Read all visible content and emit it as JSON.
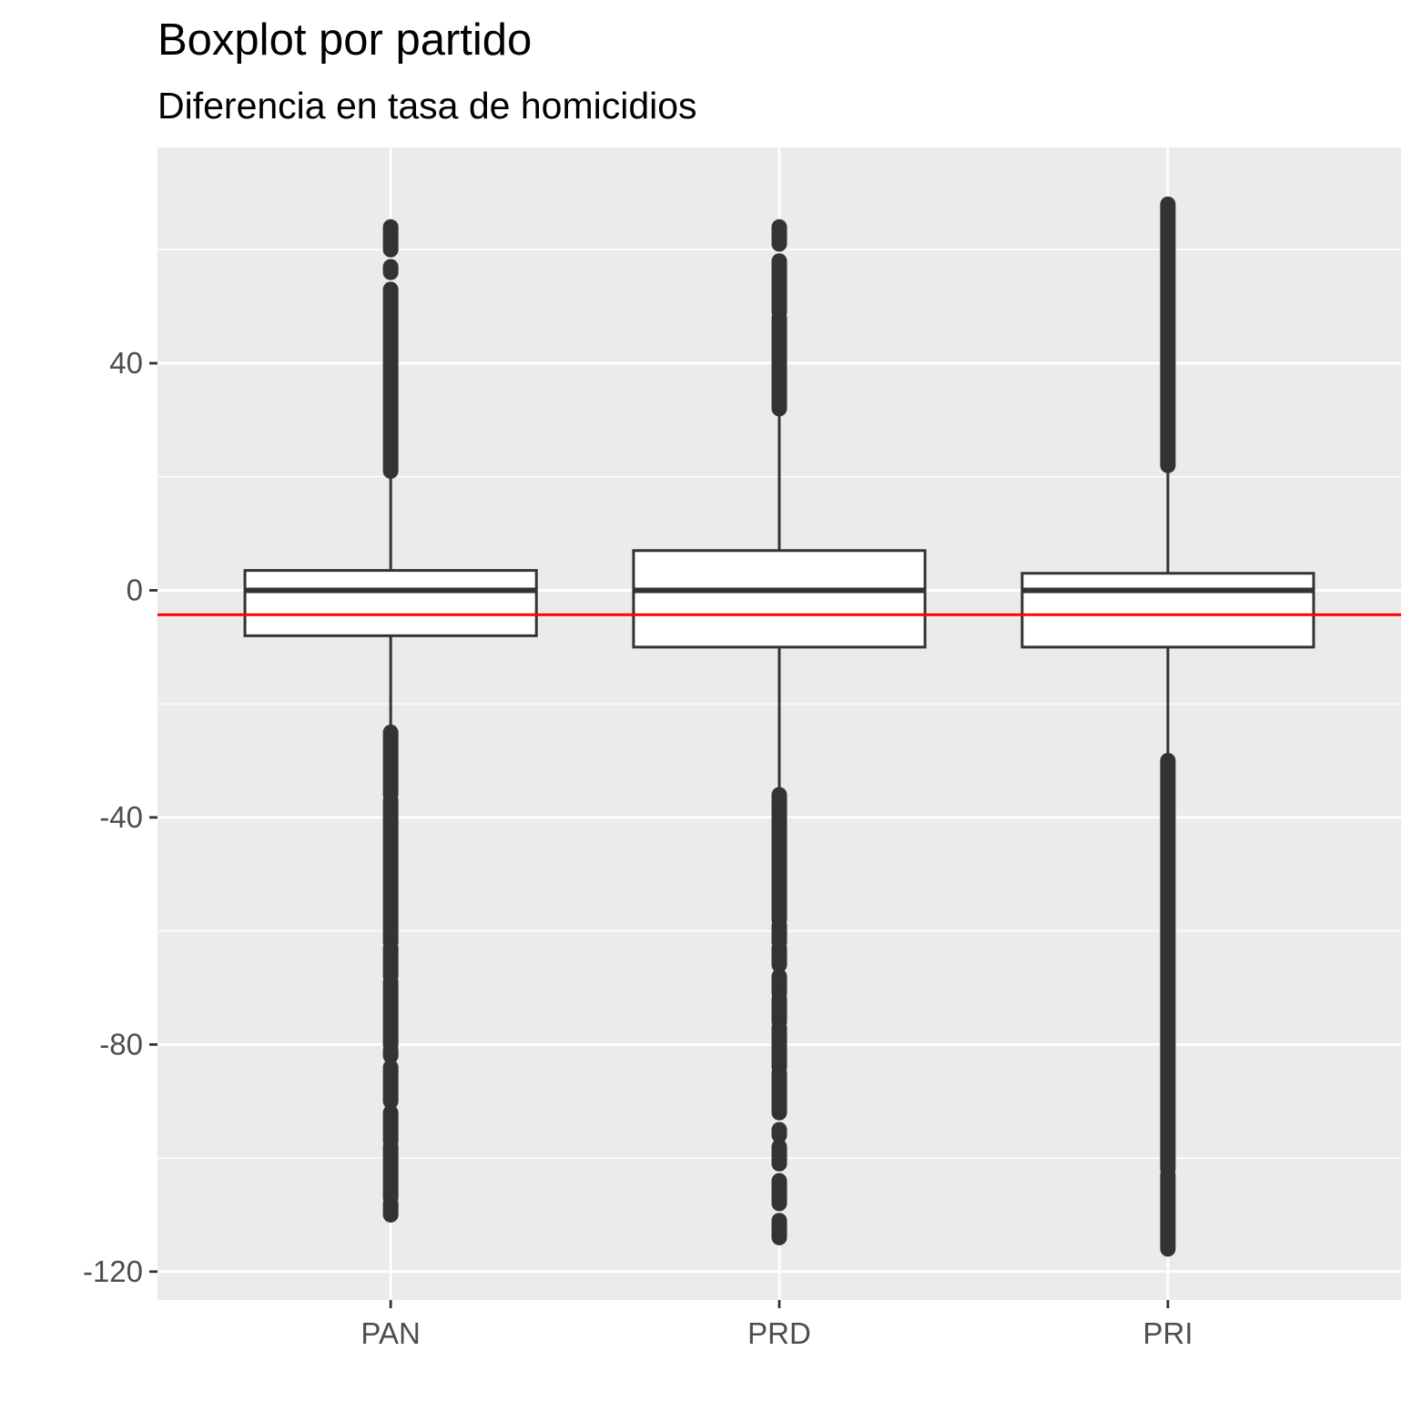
{
  "chart_data": {
    "type": "boxplot",
    "title": "Boxplot por partido",
    "subtitle": "Diferencia en tasa de homicidios",
    "xlabel": "",
    "ylabel": "",
    "categories": [
      "PAN",
      "PRD",
      "PRI"
    ],
    "ylim": [
      -125,
      78
    ],
    "y_ticks": [
      40,
      0,
      -40,
      -80,
      -120
    ],
    "y_tick_labels": [
      "40",
      "0",
      "-40",
      "-80",
      "-120"
    ],
    "boxes": [
      {
        "category": "PAN",
        "q1": -8,
        "median": 0,
        "q3": 3.5,
        "whisker_low": -25,
        "whisker_high": 21,
        "outlier_segments": [
          [
            21,
            53
          ],
          [
            56,
            57
          ],
          [
            60,
            64
          ],
          [
            -25,
            -36
          ],
          [
            -37,
            -62
          ],
          [
            -63,
            -68
          ],
          [
            -69,
            -80
          ],
          [
            -81,
            -82
          ],
          [
            -84,
            -90
          ],
          [
            -92,
            -97
          ],
          [
            -98,
            -107
          ],
          [
            -108,
            -110
          ]
        ]
      },
      {
        "category": "PRD",
        "q1": -10,
        "median": 0,
        "q3": 7,
        "whisker_low": -36,
        "whisker_high": 32,
        "outlier_segments": [
          [
            32,
            48
          ],
          [
            49,
            58
          ],
          [
            61,
            64
          ],
          [
            -36,
            -58
          ],
          [
            -59,
            -62
          ],
          [
            -63,
            -66
          ],
          [
            -68,
            -71
          ],
          [
            -72,
            -76
          ],
          [
            -77,
            -84
          ],
          [
            -85,
            -92
          ],
          [
            -95,
            -96
          ],
          [
            -98,
            -101
          ],
          [
            -104,
            -108
          ],
          [
            -111,
            -114
          ]
        ]
      },
      {
        "category": "PRI",
        "q1": -10,
        "median": 0,
        "q3": 3,
        "whisker_low": -30,
        "whisker_high": 22,
        "outlier_segments": [
          [
            22,
            68
          ],
          [
            -30,
            -102
          ],
          [
            -103,
            -116
          ]
        ]
      }
    ],
    "reference_line": {
      "y": -4.3,
      "color": "#ff0000"
    },
    "panel_background": "#ebebeb",
    "grid": true,
    "box_color": "#333333"
  }
}
